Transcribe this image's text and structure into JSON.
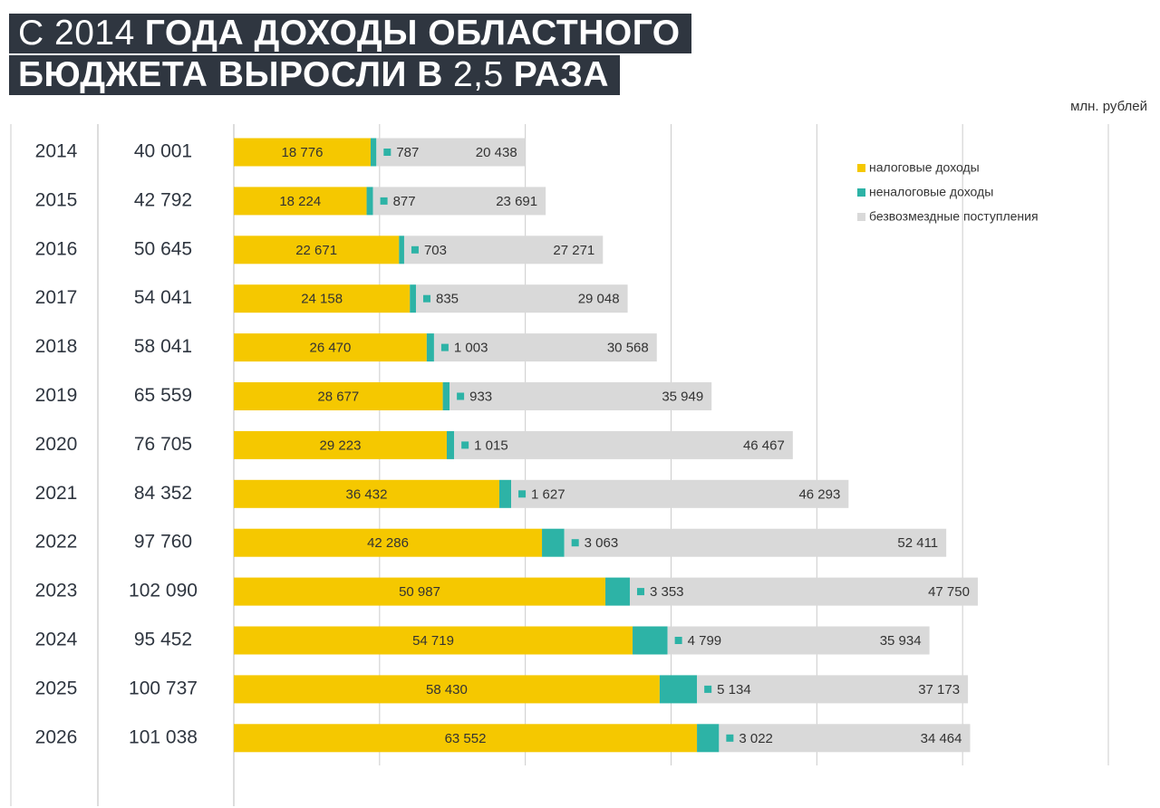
{
  "chart_data": {
    "type": "stacked-barh",
    "title_lines": [
      [
        {
          "text": "С 2014",
          "bold": false
        },
        {
          "text": "ГОДА ДОХОДЫ ОБЛАСТНОГО",
          "bold": true
        }
      ],
      [
        {
          "text": "БЮДЖЕТА ВЫРОСЛИ В",
          "bold": true
        },
        {
          "text": "2,5",
          "bold": false
        },
        {
          "text": "РАЗА",
          "bold": true
        }
      ]
    ],
    "unit": "млн. рублей",
    "categories": [
      "2014",
      "2015",
      "2016",
      "2017",
      "2018",
      "2019",
      "2020",
      "2021",
      "2022",
      "2023",
      "2024",
      "2025",
      "2026"
    ],
    "totals": [
      40001,
      42792,
      50645,
      54041,
      58041,
      65559,
      76705,
      84352,
      97760,
      102090,
      95452,
      100737,
      101038
    ],
    "totals_labels": [
      "40 001",
      "42 792",
      "50 645",
      "54 041",
      "58 041",
      "65 559",
      "76 705",
      "84 352",
      "97 760",
      "102 090",
      "95 452",
      "100 737",
      "101 038"
    ],
    "series": [
      {
        "name": "налоговые доходы",
        "color": "#f5c800",
        "values": [
          18776,
          18224,
          22671,
          24158,
          26470,
          28677,
          29223,
          36432,
          42286,
          50987,
          54719,
          58430,
          63552
        ],
        "value_labels": [
          "18 776",
          "18 224",
          "22 671",
          "24 158",
          "26 470",
          "28 677",
          "29 223",
          "36 432",
          "42 286",
          "50 987",
          "54 719",
          "58 430",
          "63 552"
        ]
      },
      {
        "name": "неналоговые доходы",
        "color": "#2db3a6",
        "values": [
          787,
          877,
          703,
          835,
          1003,
          933,
          1015,
          1627,
          3063,
          3353,
          4799,
          5134,
          3022
        ],
        "value_labels": [
          "787",
          "877",
          "703",
          "835",
          "1 003",
          "933",
          "1 015",
          "1 627",
          "3 063",
          "3 353",
          "4 799",
          "5 134",
          "3 022"
        ]
      },
      {
        "name": "безвозмездные поступления",
        "color": "#d9d9d9",
        "values": [
          20438,
          23691,
          27271,
          29048,
          30568,
          35949,
          46467,
          46293,
          52411,
          47750,
          35934,
          37173,
          34464
        ],
        "value_labels": [
          "20 438",
          "23 691",
          "27 271",
          "29 048",
          "30 568",
          "35 949",
          "46 467",
          "46 293",
          "52 411",
          "47 750",
          "35 934",
          "37 173",
          "34 464"
        ]
      }
    ],
    "xlim": [
      0,
      120000
    ],
    "xticks": [
      0,
      20000,
      40000,
      60000,
      80000,
      100000,
      120000
    ],
    "grid": true
  }
}
